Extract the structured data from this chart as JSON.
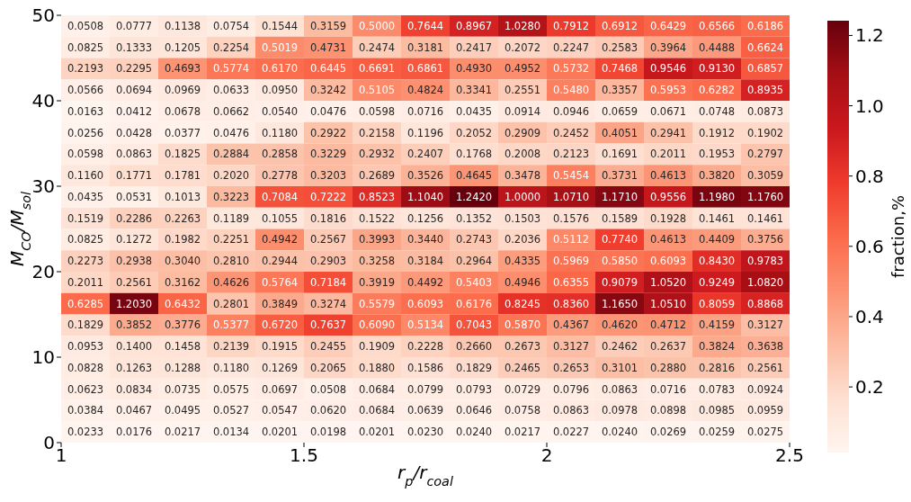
{
  "chart_data": {
    "type": "heatmap",
    "xlabel": "r$_{p}$/r$_{coal}$",
    "ylabel": "M$_{CO}$/M$_{sol}$",
    "clabel": "fraction,%",
    "xlim": [
      1,
      2.5
    ],
    "xticks": [
      1,
      1.5,
      2,
      2.5
    ],
    "ylim": [
      0,
      50
    ],
    "yticks": [
      0,
      10,
      20,
      30,
      40,
      50
    ],
    "clim": [
      0.0134,
      1.242
    ],
    "cticks": [
      0.2,
      0.4,
      0.6,
      0.8,
      {
        "value": 1,
        "label": "1.0"
      },
      1.2
    ],
    "grid": false,
    "cells": [
      [
        0.0508,
        0.0777,
        0.1138,
        0.0754,
        0.1544,
        0.3159,
        0.5,
        0.7644,
        0.8967,
        1.028,
        0.7912,
        0.6912,
        0.6429,
        0.6566,
        0.6186
      ],
      [
        0.0825,
        0.1333,
        0.1205,
        0.2254,
        0.5019,
        0.4731,
        0.2474,
        0.3181,
        0.2417,
        0.2072,
        0.2247,
        0.2583,
        0.3964,
        0.4488,
        0.6624
      ],
      [
        0.2193,
        0.2295,
        0.4693,
        0.5774,
        0.617,
        0.6445,
        0.6691,
        0.6861,
        0.493,
        0.4952,
        0.5732,
        0.7468,
        0.9546,
        0.913,
        0.6857
      ],
      [
        0.0566,
        0.0694,
        0.0969,
        0.0633,
        0.095,
        0.3242,
        0.5105,
        0.4824,
        0.3341,
        0.2551,
        0.548,
        0.3357,
        0.5953,
        0.6282,
        0.8935
      ],
      [
        0.0163,
        0.0412,
        0.0678,
        0.0662,
        0.054,
        0.0476,
        0.0598,
        0.0716,
        0.0435,
        0.0914,
        0.0946,
        0.0659,
        0.0671,
        0.0748,
        0.0873
      ],
      [
        0.0256,
        0.0428,
        0.0377,
        0.0476,
        0.118,
        0.2922,
        0.2158,
        0.1196,
        0.2052,
        0.2909,
        0.2452,
        0.4051,
        0.2941,
        0.1912,
        0.1902
      ],
      [
        0.0598,
        0.0863,
        0.1825,
        0.2884,
        0.2858,
        0.3229,
        0.2932,
        0.2407,
        0.1768,
        0.2008,
        0.2123,
        0.1691,
        0.2011,
        0.1953,
        0.2797
      ],
      [
        0.116,
        0.1771,
        0.1781,
        0.202,
        0.2778,
        0.3203,
        0.2689,
        0.3526,
        0.4645,
        0.3478,
        0.5454,
        0.3731,
        0.4613,
        0.382,
        0.3059
      ],
      [
        0.0435,
        0.0531,
        0.1013,
        0.3223,
        0.7084,
        0.7222,
        0.8523,
        1.104,
        1.242,
        1.0,
        1.071,
        1.171,
        0.9556,
        1.198,
        1.176
      ],
      [
        0.1519,
        0.2286,
        0.2263,
        0.1189,
        0.1055,
        0.1816,
        0.1522,
        0.1256,
        0.1352,
        0.1503,
        0.1576,
        0.1589,
        0.1928,
        0.1461,
        0.1461
      ],
      [
        0.0825,
        0.1272,
        0.1982,
        0.2251,
        0.4942,
        0.2567,
        0.3993,
        0.344,
        0.2743,
        0.2036,
        0.5112,
        0.774,
        0.4613,
        0.4409,
        0.3756
      ],
      [
        0.2273,
        0.2938,
        0.304,
        0.281,
        0.2944,
        0.2903,
        0.3258,
        0.3184,
        0.2964,
        0.4335,
        0.5969,
        0.585,
        0.6093,
        0.843,
        0.9783
      ],
      [
        0.2011,
        0.2561,
        0.3162,
        0.4626,
        0.5764,
        0.7184,
        0.3919,
        0.4492,
        0.5403,
        0.4946,
        0.6355,
        0.9079,
        1.052,
        0.9249,
        1.082
      ],
      [
        0.6285,
        1.203,
        0.6432,
        0.2801,
        0.3849,
        0.3274,
        0.5579,
        0.6093,
        0.6176,
        0.8245,
        0.836,
        1.165,
        1.051,
        0.8059,
        0.8868
      ],
      [
        0.1829,
        0.3852,
        0.3776,
        0.5377,
        0.672,
        0.7637,
        0.609,
        0.5134,
        0.7043,
        0.587,
        0.4367,
        0.462,
        0.4712,
        0.4159,
        0.3127
      ],
      [
        0.0953,
        0.14,
        0.1458,
        0.2139,
        0.1915,
        0.2455,
        0.1909,
        0.2228,
        0.266,
        0.2673,
        0.3127,
        0.2462,
        0.2637,
        0.3824,
        0.3638
      ],
      [
        0.0828,
        0.1263,
        0.1288,
        0.118,
        0.1269,
        0.2065,
        0.188,
        0.1586,
        0.1829,
        0.2465,
        0.2653,
        0.3101,
        0.288,
        0.2816,
        0.2561
      ],
      [
        0.0623,
        0.0834,
        0.0735,
        0.0575,
        0.0697,
        0.0508,
        0.0684,
        0.0799,
        0.0793,
        0.0729,
        0.0796,
        0.0863,
        0.0716,
        0.0783,
        0.0924
      ],
      [
        0.0384,
        0.0467,
        0.0495,
        0.0527,
        0.0547,
        0.062,
        0.0684,
        0.0639,
        0.0646,
        0.0758,
        0.0863,
        0.0978,
        0.0898,
        0.0985,
        0.0959
      ],
      [
        0.0233,
        0.0176,
        0.0217,
        0.0134,
        0.0201,
        0.0198,
        0.0201,
        0.023,
        0.024,
        0.0217,
        0.0227,
        0.024,
        0.0269,
        0.0259,
        0.0275
      ]
    ],
    "cell_labels": [
      [
        "0.0508",
        "0.0777",
        "0.1138",
        "0.0754",
        "0.1544",
        "0.3159",
        "0.5000",
        "0.7644",
        "0.8967",
        "1.0280",
        "0.7912",
        "0.6912",
        "0.6429",
        "0.6566",
        "0.6186"
      ],
      [
        "0.0825",
        "0.1333",
        "0.1205",
        "0.2254",
        "0.5019",
        "0.4731",
        "0.2474",
        "0.3181",
        "0.2417",
        "0.2072",
        "0.2247",
        "0.2583",
        "0.3964",
        "0.4488",
        "0.6624"
      ],
      [
        "0.2193",
        "0.2295",
        "0.4693",
        "0.5774",
        "0.6170",
        "0.6445",
        "0.6691",
        "0.6861",
        "0.4930",
        "0.4952",
        "0.5732",
        "0.7468",
        "0.9546",
        "0.9130",
        "0.6857"
      ],
      [
        "0.0566",
        "0.0694",
        "0.0969",
        "0.0633",
        "0.0950",
        "0.3242",
        "0.5105",
        "0.4824",
        "0.3341",
        "0.2551",
        "0.5480",
        "0.3357",
        "0.5953",
        "0.6282",
        "0.8935"
      ],
      [
        "0.0163",
        "0.0412",
        "0.0678",
        "0.0662",
        "0.0540",
        "0.0476",
        "0.0598",
        "0.0716",
        "0.0435",
        "0.0914",
        "0.0946",
        "0.0659",
        "0.0671",
        "0.0748",
        "0.0873"
      ],
      [
        "0.0256",
        "0.0428",
        "0.0377",
        "0.0476",
        "0.1180",
        "0.2922",
        "0.2158",
        "0.1196",
        "0.2052",
        "0.2909",
        "0.2452",
        "0.4051",
        "0.2941",
        "0.1912",
        "0.1902"
      ],
      [
        "0.0598",
        "0.0863",
        "0.1825",
        "0.2884",
        "0.2858",
        "0.3229",
        "0.2932",
        "0.2407",
        "0.1768",
        "0.2008",
        "0.2123",
        "0.1691",
        "0.2011",
        "0.1953",
        "0.2797"
      ],
      [
        "0.1160",
        "0.1771",
        "0.1781",
        "0.2020",
        "0.2778",
        "0.3203",
        "0.2689",
        "0.3526",
        "0.4645",
        "0.3478",
        "0.5454",
        "0.3731",
        "0.4613",
        "0.3820",
        "0.3059"
      ],
      [
        "0.0435",
        "0.0531",
        "0.1013",
        "0.3223",
        "0.7084",
        "0.7222",
        "0.8523",
        "1.1040",
        "1.2420",
        "1.0000",
        "1.0710",
        "1.1710",
        "0.9556",
        "1.1980",
        "1.1760"
      ],
      [
        "0.1519",
        "0.2286",
        "0.2263",
        "0.1189",
        "0.1055",
        "0.1816",
        "0.1522",
        "0.1256",
        "0.1352",
        "0.1503",
        "0.1576",
        "0.1589",
        "0.1928",
        "0.1461",
        "0.1461"
      ],
      [
        "0.0825",
        "0.1272",
        "0.1982",
        "0.2251",
        "0.4942",
        "0.2567",
        "0.3993",
        "0.3440",
        "0.2743",
        "0.2036",
        "0.5112",
        "0.7740",
        "0.4613",
        "0.4409",
        "0.3756"
      ],
      [
        "0.2273",
        "0.2938",
        "0.3040",
        "0.2810",
        "0.2944",
        "0.2903",
        "0.3258",
        "0.3184",
        "0.2964",
        "0.4335",
        "0.5969",
        "0.5850",
        "0.6093",
        "0.8430",
        "0.9783"
      ],
      [
        "0.2011",
        "0.2561",
        "0.3162",
        "0.4626",
        "0.5764",
        "0.7184",
        "0.3919",
        "0.4492",
        "0.5403",
        "0.4946",
        "0.6355",
        "0.9079",
        "1.0520",
        "0.9249",
        "1.0820"
      ],
      [
        "0.6285",
        "1.2030",
        "0.6432",
        "0.2801",
        "0.3849",
        "0.3274",
        "0.5579",
        "0.6093",
        "0.6176",
        "0.8245",
        "0.8360",
        "1.1650",
        "1.0510",
        "0.8059",
        "0.8868"
      ],
      [
        "0.1829",
        "0.3852",
        "0.3776",
        "0.5377",
        "0.6720",
        "0.7637",
        "0.6090",
        "0.5134",
        "0.7043",
        "0.5870",
        "0.4367",
        "0.4620",
        "0.4712",
        "0.4159",
        "0.3127"
      ],
      [
        "0.0953",
        "0.1400",
        "0.1458",
        "0.2139",
        "0.1915",
        "0.2455",
        "0.1909",
        "0.2228",
        "0.2660",
        "0.2673",
        "0.3127",
        "0.2462",
        "0.2637",
        "0.3824",
        "0.3638"
      ],
      [
        "0.0828",
        "0.1263",
        "0.1288",
        "0.1180",
        "0.1269",
        "0.2065",
        "0.1880",
        "0.1586",
        "0.1829",
        "0.2465",
        "0.2653",
        "0.3101",
        "0.2880",
        "0.2816",
        "0.2561"
      ],
      [
        "0.0623",
        "0.0834",
        "0.0735",
        "0.0575",
        "0.0697",
        "0.0508",
        "0.0684",
        "0.0799",
        "0.0793",
        "0.0729",
        "0.0796",
        "0.0863",
        "0.0716",
        "0.0783",
        "0.0924"
      ],
      [
        "0.0384",
        "0.0467",
        "0.0495",
        "0.0527",
        "0.0547",
        "0.0620",
        "0.0684",
        "0.0639",
        "0.0646",
        "0.0758",
        "0.0863",
        "0.0978",
        "0.0898",
        "0.0985",
        "0.0959"
      ],
      [
        "0.0233",
        "0.0176",
        "0.0217",
        "0.0134",
        "0.0201",
        "0.0198",
        "0.0201",
        "0.0230",
        "0.0240",
        "0.0217",
        "0.0227",
        "0.0240",
        "0.0269",
        "0.0259",
        "0.0275"
      ]
    ]
  }
}
